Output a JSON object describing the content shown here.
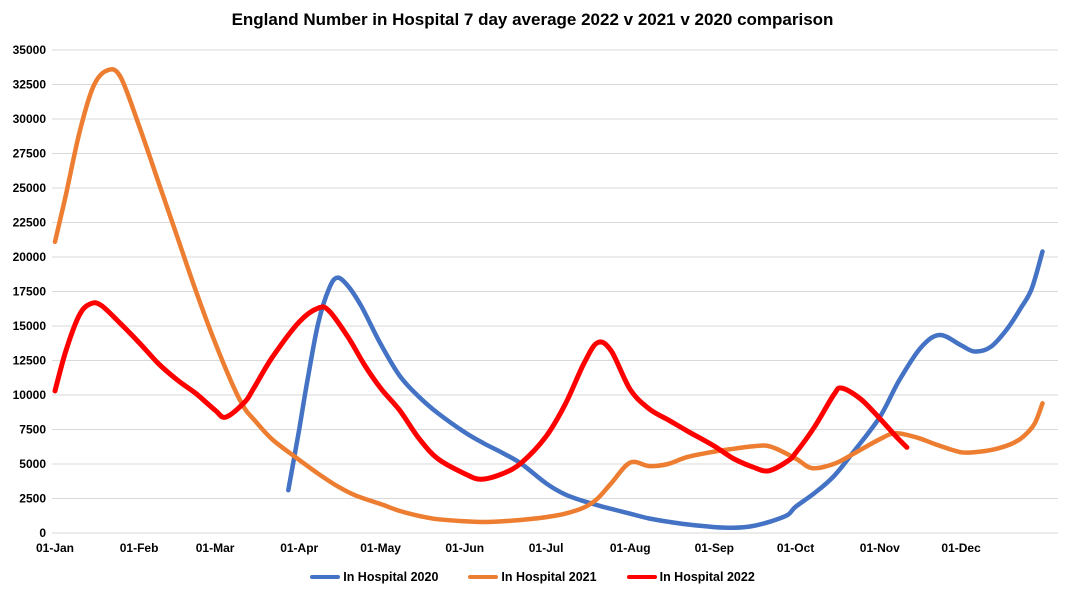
{
  "chart_data": {
    "type": "line",
    "title": "England Number in Hospital 7 day average 2022 v 2021 v 2020 comparison",
    "xlabel": "",
    "ylabel": "",
    "ylim": [
      0,
      35000
    ],
    "ytick_step": 2500,
    "ytick_labels": [
      "0",
      "2500",
      "5000",
      "7500",
      "10000",
      "12500",
      "15000",
      "17500",
      "20000",
      "22500",
      "25000",
      "27500",
      "30000",
      "32500",
      "35000"
    ],
    "xtick_labels": [
      "01-Jan",
      "01-Feb",
      "01-Mar",
      "01-Apr",
      "01-May",
      "01-Jun",
      "01-Jul",
      "01-Aug",
      "01-Sep",
      "01-Oct",
      "01-Nov",
      "01-Dec"
    ],
    "grid": "horizontal",
    "gridline_color": "#D9D9D9",
    "background": "#FFFFFF",
    "legend_position": "bottom",
    "series": [
      {
        "name": "In Hospital 2020",
        "color": "#4472C4",
        "stroke_width": 4.5,
        "points": [
          [
            "03-28",
            3100
          ],
          [
            "04-01",
            7500
          ],
          [
            "04-04",
            11000
          ],
          [
            "04-08",
            15200
          ],
          [
            "04-12",
            17700
          ],
          [
            "04-15",
            18500
          ],
          [
            "04-19",
            17900
          ],
          [
            "04-24",
            16400
          ],
          [
            "05-01",
            13700
          ],
          [
            "05-08",
            11400
          ],
          [
            "05-15",
            9900
          ],
          [
            "05-22",
            8700
          ],
          [
            "06-01",
            7300
          ],
          [
            "06-08",
            6500
          ],
          [
            "06-15",
            5800
          ],
          [
            "06-22",
            5000
          ],
          [
            "07-01",
            3600
          ],
          [
            "07-08",
            2800
          ],
          [
            "07-15",
            2300
          ],
          [
            "07-22",
            1900
          ],
          [
            "08-01",
            1400
          ],
          [
            "08-08",
            1050
          ],
          [
            "08-15",
            820
          ],
          [
            "08-22",
            620
          ],
          [
            "09-01",
            430
          ],
          [
            "09-08",
            380
          ],
          [
            "09-15",
            500
          ],
          [
            "09-22",
            850
          ],
          [
            "09-28",
            1300
          ],
          [
            "10-01",
            1900
          ],
          [
            "10-08",
            2900
          ],
          [
            "10-15",
            4100
          ],
          [
            "10-22",
            5800
          ],
          [
            "11-01",
            8400
          ],
          [
            "11-08",
            11000
          ],
          [
            "11-16",
            13400
          ],
          [
            "11-23",
            14350
          ],
          [
            "12-01",
            13600
          ],
          [
            "12-06",
            13150
          ],
          [
            "12-12",
            13500
          ],
          [
            "12-18",
            14800
          ],
          [
            "12-23",
            16300
          ],
          [
            "12-27",
            17700
          ],
          [
            "12-31",
            20400
          ]
        ]
      },
      {
        "name": "In Hospital 2021",
        "color": "#ED7D31",
        "stroke_width": 4.5,
        "points": [
          [
            "01-01",
            21100
          ],
          [
            "01-05",
            24500
          ],
          [
            "01-10",
            29000
          ],
          [
            "01-15",
            32300
          ],
          [
            "01-20",
            33500
          ],
          [
            "01-25",
            33100
          ],
          [
            "02-01",
            29500
          ],
          [
            "02-08",
            25500
          ],
          [
            "02-15",
            21500
          ],
          [
            "02-22",
            17500
          ],
          [
            "03-01",
            13800
          ],
          [
            "03-08",
            10500
          ],
          [
            "03-12",
            9000
          ],
          [
            "03-15",
            8300
          ],
          [
            "03-22",
            6800
          ],
          [
            "04-01",
            5300
          ],
          [
            "04-08",
            4300
          ],
          [
            "04-15",
            3400
          ],
          [
            "04-22",
            2700
          ],
          [
            "05-01",
            2100
          ],
          [
            "05-08",
            1600
          ],
          [
            "05-15",
            1250
          ],
          [
            "05-22",
            1000
          ],
          [
            "06-01",
            850
          ],
          [
            "06-08",
            800
          ],
          [
            "06-15",
            850
          ],
          [
            "06-22",
            950
          ],
          [
            "07-01",
            1150
          ],
          [
            "07-08",
            1400
          ],
          [
            "07-15",
            1850
          ],
          [
            "07-20",
            2500
          ],
          [
            "07-25",
            3600
          ],
          [
            "08-01",
            5100
          ],
          [
            "08-08",
            4850
          ],
          [
            "08-15",
            5000
          ],
          [
            "08-22",
            5500
          ],
          [
            "09-01",
            5900
          ],
          [
            "09-08",
            6100
          ],
          [
            "09-16",
            6300
          ],
          [
            "09-22",
            6250
          ],
          [
            "10-01",
            5400
          ],
          [
            "10-07",
            4700
          ],
          [
            "10-15",
            5000
          ],
          [
            "10-22",
            5700
          ],
          [
            "11-01",
            6800
          ],
          [
            "11-07",
            7230
          ],
          [
            "11-15",
            6900
          ],
          [
            "11-22",
            6400
          ],
          [
            "12-01",
            5850
          ],
          [
            "12-08",
            5900
          ],
          [
            "12-14",
            6100
          ],
          [
            "12-20",
            6500
          ],
          [
            "12-24",
            7000
          ],
          [
            "12-28",
            7900
          ],
          [
            "12-31",
            9400
          ]
        ]
      },
      {
        "name": "In Hospital 2022",
        "color": "#FF0000",
        "stroke_width": 5,
        "points": [
          [
            "01-01",
            10300
          ],
          [
            "01-05",
            13200
          ],
          [
            "01-10",
            15800
          ],
          [
            "01-14",
            16600
          ],
          [
            "01-18",
            16500
          ],
          [
            "01-25",
            15200
          ],
          [
            "02-01",
            13800
          ],
          [
            "02-08",
            12300
          ],
          [
            "02-15",
            11100
          ],
          [
            "02-22",
            10100
          ],
          [
            "03-01",
            8900
          ],
          [
            "03-05",
            8400
          ],
          [
            "03-12",
            9500
          ],
          [
            "03-15",
            10400
          ],
          [
            "03-22",
            12700
          ],
          [
            "04-01",
            15300
          ],
          [
            "04-08",
            16300
          ],
          [
            "04-12",
            16100
          ],
          [
            "04-19",
            14200
          ],
          [
            "04-25",
            12200
          ],
          [
            "05-01",
            10500
          ],
          [
            "05-08",
            8900
          ],
          [
            "05-15",
            6900
          ],
          [
            "05-22",
            5400
          ],
          [
            "06-01",
            4300
          ],
          [
            "06-07",
            3900
          ],
          [
            "06-15",
            4300
          ],
          [
            "06-22",
            5100
          ],
          [
            "07-01",
            7000
          ],
          [
            "07-08",
            9300
          ],
          [
            "07-15",
            12300
          ],
          [
            "07-20",
            13800
          ],
          [
            "07-25",
            13200
          ],
          [
            "08-01",
            10400
          ],
          [
            "08-08",
            9000
          ],
          [
            "08-15",
            8200
          ],
          [
            "08-22",
            7400
          ],
          [
            "09-01",
            6300
          ],
          [
            "09-08",
            5400
          ],
          [
            "09-15",
            4800
          ],
          [
            "09-21",
            4500
          ],
          [
            "09-28",
            5200
          ],
          [
            "10-01",
            5800
          ],
          [
            "10-08",
            7700
          ],
          [
            "10-15",
            10000
          ],
          [
            "10-18",
            10500
          ],
          [
            "10-25",
            9700
          ],
          [
            "11-01",
            8300
          ],
          [
            "11-07",
            7000
          ],
          [
            "11-11",
            6200
          ]
        ]
      }
    ]
  }
}
